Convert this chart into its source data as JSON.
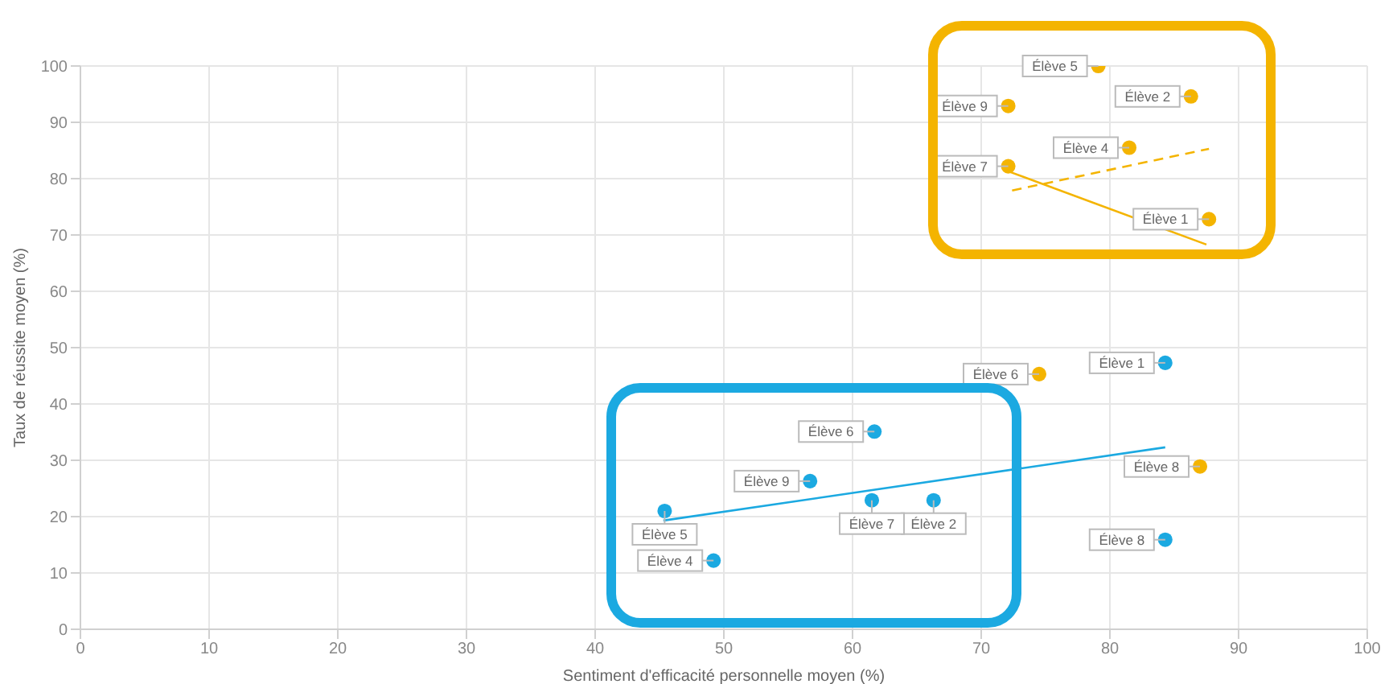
{
  "chart_data": {
    "type": "scatter",
    "xlabel": "Sentiment d'efficacité personnelle moyen (%)",
    "ylabel": "Taux de réussite moyen (%)",
    "xlim": [
      0,
      100
    ],
    "xticks": [
      0,
      10,
      20,
      30,
      40,
      50,
      60,
      70,
      80,
      90,
      100
    ],
    "ylim": [
      0,
      100
    ],
    "yticks": [
      0,
      10,
      20,
      30,
      40,
      50,
      60,
      70,
      80,
      90,
      100
    ],
    "grid": true,
    "marker": "circle",
    "series": [
      {
        "color": "#f4b400",
        "x": [
          87.7,
          86.3,
          81.5,
          79.1,
          74.5,
          72.1,
          87.0,
          72.1
        ],
        "values": [
          72.8,
          94.6,
          85.5,
          100,
          45.3,
          82.2,
          28.9,
          92.9
        ],
        "value_labels": [
          "Élève 1",
          "Élève 2",
          "Élève 4",
          "Élève 5",
          "Élève 6",
          "Élève 7",
          "Élève 8",
          "Élève 9"
        ]
      },
      {
        "color": "#1ba9e1",
        "x": [
          84.3,
          66.3,
          49.2,
          45.4,
          61.7,
          61.5,
          84.3,
          56.7
        ],
        "values": [
          47.3,
          22.9,
          12.2,
          21.0,
          35.1,
          22.9,
          15.9,
          26.3
        ],
        "value_labels": [
          "Élève 1",
          "Élève 2",
          "Élève 4",
          "Élève 5",
          "Élève 6",
          "Élève 7",
          "Élève 8",
          "Élève 9"
        ]
      },
      {
        "type": "line",
        "color": "#f4b400",
        "line_style": "solid",
        "marker": "none",
        "x": [
          72.1,
          87.5
        ],
        "values": [
          81.3,
          68.3
        ]
      },
      {
        "type": "line",
        "color": "#f4b400",
        "line_style": "dashed",
        "marker": "none",
        "x": [
          72.4,
          87.7
        ],
        "values": [
          77.9,
          85.3
        ]
      },
      {
        "type": "line",
        "color": "#1ba9e1",
        "line_style": "solid",
        "marker": "none",
        "x": [
          45.3,
          84.3
        ],
        "values": [
          19.3,
          32.3
        ]
      }
    ]
  }
}
